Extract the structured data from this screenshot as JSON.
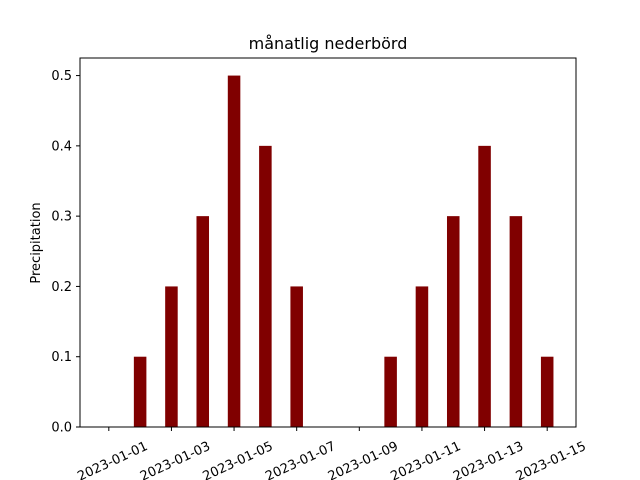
{
  "chart_data": {
    "type": "bar",
    "title": "månatlig nederbörd",
    "xlabel": "",
    "ylabel": "Precipitation",
    "categories": [
      "2023-01-01",
      "2023-01-02",
      "2023-01-03",
      "2023-01-04",
      "2023-01-05",
      "2023-01-06",
      "2023-01-07",
      "2023-01-08",
      "2023-01-09",
      "2023-01-10",
      "2023-01-11",
      "2023-01-12",
      "2023-01-13",
      "2023-01-14",
      "2023-01-15"
    ],
    "values": [
      0.0,
      0.1,
      0.2,
      0.3,
      0.5,
      0.4,
      0.2,
      0.0,
      0.0,
      0.1,
      0.2,
      0.3,
      0.4,
      0.3,
      0.1
    ],
    "x_tick_labels": [
      "2023-01-01",
      "2023-01-03",
      "2023-01-05",
      "2023-01-07",
      "2023-01-09",
      "2023-01-11",
      "2023-01-13",
      "2023-01-15"
    ],
    "y_ticks": [
      0.0,
      0.1,
      0.2,
      0.3,
      0.4,
      0.5
    ],
    "y_tick_labels": [
      "0.0",
      "0.1",
      "0.2",
      "0.3",
      "0.4",
      "0.5"
    ],
    "ylim": [
      0,
      0.525
    ],
    "bar_color": "#800000",
    "grid": false,
    "legend": "none"
  }
}
